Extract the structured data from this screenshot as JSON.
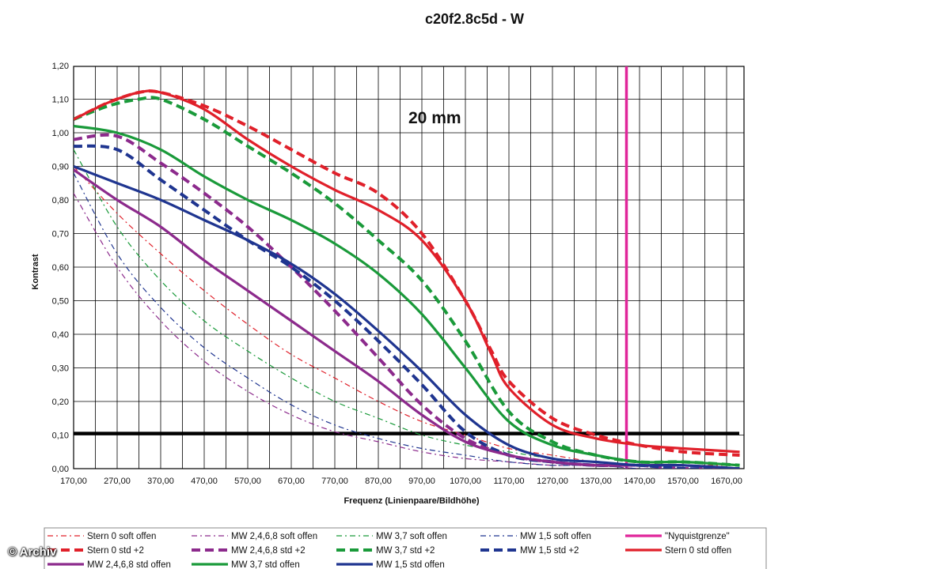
{
  "chart_data": {
    "type": "line",
    "title": "c20f2.8c5d - W",
    "annotation": "20 mm",
    "xlabel": "Frequenz (Linienpaare/Bildhöhe)",
    "ylabel": "Kontrast",
    "xlim": [
      170,
      1700
    ],
    "ylim": [
      0,
      1.2
    ],
    "x_ticks": [
      "170,00",
      "270,00",
      "370,00",
      "470,00",
      "570,00",
      "670,00",
      "770,00",
      "870,00",
      "970,00",
      "1070,00",
      "1170,00",
      "1270,00",
      "1370,00",
      "1470,00",
      "1570,00",
      "1670,00"
    ],
    "y_ticks": [
      "0,00",
      "0,10",
      "0,20",
      "0,30",
      "0,40",
      "0,50",
      "0,60",
      "0,70",
      "0,80",
      "0,90",
      "1,00",
      "1,10",
      "1,20"
    ],
    "grid": true,
    "legend_position": "bottom",
    "reference_lines": [
      {
        "orientation": "horizontal",
        "y": 0.105,
        "color": "#000000"
      },
      {
        "orientation": "vertical",
        "x": 1440,
        "color": "#e0259a"
      }
    ],
    "series": [
      {
        "name": "Stern 0 soft offen",
        "color": "#e0202a",
        "style": "dashdot",
        "points": [
          [
            170,
            0.9
          ],
          [
            270,
            0.76
          ],
          [
            370,
            0.64
          ],
          [
            470,
            0.53
          ],
          [
            570,
            0.43
          ],
          [
            670,
            0.34
          ],
          [
            770,
            0.27
          ],
          [
            870,
            0.2
          ],
          [
            970,
            0.14
          ],
          [
            1070,
            0.1
          ],
          [
            1170,
            0.06
          ],
          [
            1270,
            0.04
          ],
          [
            1370,
            0.02
          ],
          [
            1470,
            0.01
          ],
          [
            1570,
            0.01
          ],
          [
            1700,
            0.01
          ]
        ]
      },
      {
        "name": "MW 2,4,6,8 soft offen",
        "color": "#8c2a8c",
        "style": "dashdot",
        "points": [
          [
            170,
            0.82
          ],
          [
            270,
            0.6
          ],
          [
            370,
            0.44
          ],
          [
            470,
            0.32
          ],
          [
            570,
            0.23
          ],
          [
            670,
            0.16
          ],
          [
            770,
            0.11
          ],
          [
            870,
            0.08
          ],
          [
            970,
            0.05
          ],
          [
            1070,
            0.03
          ],
          [
            1170,
            0.02
          ],
          [
            1270,
            0.01
          ],
          [
            1370,
            0.01
          ],
          [
            1470,
            0.0
          ],
          [
            1570,
            0.0
          ],
          [
            1700,
            0.0
          ]
        ]
      },
      {
        "name": "MW 3,7 soft offen",
        "color": "#1a9a3a",
        "style": "dashdot",
        "points": [
          [
            170,
            0.95
          ],
          [
            270,
            0.72
          ],
          [
            370,
            0.56
          ],
          [
            470,
            0.44
          ],
          [
            570,
            0.35
          ],
          [
            670,
            0.27
          ],
          [
            770,
            0.2
          ],
          [
            870,
            0.15
          ],
          [
            970,
            0.1
          ],
          [
            1070,
            0.07
          ],
          [
            1170,
            0.05
          ],
          [
            1270,
            0.03
          ],
          [
            1370,
            0.02
          ],
          [
            1470,
            0.01
          ],
          [
            1570,
            0.01
          ],
          [
            1700,
            0.0
          ]
        ]
      },
      {
        "name": "MW 1,5 soft offen",
        "color": "#1f3590",
        "style": "dashdot",
        "points": [
          [
            170,
            0.88
          ],
          [
            270,
            0.64
          ],
          [
            370,
            0.48
          ],
          [
            470,
            0.36
          ],
          [
            570,
            0.27
          ],
          [
            670,
            0.19
          ],
          [
            770,
            0.13
          ],
          [
            870,
            0.09
          ],
          [
            970,
            0.06
          ],
          [
            1070,
            0.04
          ],
          [
            1170,
            0.02
          ],
          [
            1270,
            0.01
          ],
          [
            1370,
            0.01
          ],
          [
            1470,
            0.0
          ],
          [
            1570,
            0.0
          ],
          [
            1700,
            0.0
          ]
        ]
      },
      {
        "name": "\"Nyquistgrenze\"",
        "color": "#e0259a",
        "style": "solid",
        "points": []
      },
      {
        "name": "Stern 0 std +2",
        "color": "#e0202a",
        "style": "dashed",
        "points": [
          [
            170,
            1.04
          ],
          [
            250,
            1.09
          ],
          [
            320,
            1.12
          ],
          [
            370,
            1.12
          ],
          [
            470,
            1.08
          ],
          [
            570,
            1.02
          ],
          [
            670,
            0.95
          ],
          [
            770,
            0.88
          ],
          [
            870,
            0.82
          ],
          [
            970,
            0.7
          ],
          [
            1070,
            0.5
          ],
          [
            1130,
            0.35
          ],
          [
            1170,
            0.26
          ],
          [
            1270,
            0.15
          ],
          [
            1370,
            0.1
          ],
          [
            1470,
            0.07
          ],
          [
            1570,
            0.05
          ],
          [
            1700,
            0.04
          ]
        ]
      },
      {
        "name": "MW 2,4,6,8 std +2",
        "color": "#8c2a8c",
        "style": "dashed",
        "points": [
          [
            170,
            0.98
          ],
          [
            270,
            0.99
          ],
          [
            370,
            0.91
          ],
          [
            470,
            0.82
          ],
          [
            570,
            0.72
          ],
          [
            670,
            0.6
          ],
          [
            770,
            0.47
          ],
          [
            870,
            0.33
          ],
          [
            970,
            0.19
          ],
          [
            1070,
            0.09
          ],
          [
            1170,
            0.04
          ],
          [
            1270,
            0.02
          ],
          [
            1370,
            0.01
          ],
          [
            1470,
            0.01
          ],
          [
            1570,
            0.0
          ],
          [
            1700,
            0.0
          ]
        ]
      },
      {
        "name": "MW 3,7 std +2",
        "color": "#1a9a3a",
        "style": "dashed",
        "points": [
          [
            170,
            1.04
          ],
          [
            250,
            1.08
          ],
          [
            320,
            1.1
          ],
          [
            370,
            1.1
          ],
          [
            470,
            1.04
          ],
          [
            570,
            0.96
          ],
          [
            670,
            0.88
          ],
          [
            770,
            0.79
          ],
          [
            870,
            0.68
          ],
          [
            970,
            0.56
          ],
          [
            1070,
            0.38
          ],
          [
            1170,
            0.17
          ],
          [
            1270,
            0.08
          ],
          [
            1370,
            0.04
          ],
          [
            1470,
            0.02
          ],
          [
            1570,
            0.02
          ],
          [
            1700,
            0.01
          ]
        ]
      },
      {
        "name": "MW 1,5 std +2",
        "color": "#1f3590",
        "style": "dashed",
        "points": [
          [
            170,
            0.96
          ],
          [
            270,
            0.95
          ],
          [
            370,
            0.86
          ],
          [
            470,
            0.77
          ],
          [
            570,
            0.68
          ],
          [
            670,
            0.6
          ],
          [
            770,
            0.5
          ],
          [
            870,
            0.38
          ],
          [
            970,
            0.25
          ],
          [
            1070,
            0.11
          ],
          [
            1170,
            0.04
          ],
          [
            1270,
            0.02
          ],
          [
            1370,
            0.01
          ],
          [
            1470,
            0.01
          ],
          [
            1570,
            0.0
          ],
          [
            1700,
            0.0
          ]
        ]
      },
      {
        "name": "Stern 0 std offen",
        "color": "#e0202a",
        "style": "solid",
        "points": [
          [
            170,
            1.04
          ],
          [
            250,
            1.09
          ],
          [
            320,
            1.12
          ],
          [
            370,
            1.12
          ],
          [
            470,
            1.07
          ],
          [
            570,
            0.98
          ],
          [
            670,
            0.9
          ],
          [
            770,
            0.83
          ],
          [
            870,
            0.77
          ],
          [
            970,
            0.68
          ],
          [
            1070,
            0.5
          ],
          [
            1130,
            0.34
          ],
          [
            1170,
            0.24
          ],
          [
            1270,
            0.13
          ],
          [
            1370,
            0.09
          ],
          [
            1470,
            0.07
          ],
          [
            1570,
            0.06
          ],
          [
            1700,
            0.05
          ]
        ]
      },
      {
        "name": "MW 2,4,6,8 std offen",
        "color": "#8c2a8c",
        "style": "solid",
        "points": [
          [
            170,
            0.89
          ],
          [
            270,
            0.8
          ],
          [
            370,
            0.72
          ],
          [
            470,
            0.62
          ],
          [
            570,
            0.53
          ],
          [
            670,
            0.44
          ],
          [
            770,
            0.35
          ],
          [
            870,
            0.26
          ],
          [
            970,
            0.16
          ],
          [
            1070,
            0.08
          ],
          [
            1170,
            0.04
          ],
          [
            1270,
            0.02
          ],
          [
            1370,
            0.01
          ],
          [
            1470,
            0.01
          ],
          [
            1570,
            0.01
          ],
          [
            1700,
            0.0
          ]
        ]
      },
      {
        "name": "MW 3,7 std offen",
        "color": "#1a9a3a",
        "style": "solid",
        "points": [
          [
            170,
            1.02
          ],
          [
            270,
            1.0
          ],
          [
            370,
            0.95
          ],
          [
            470,
            0.87
          ],
          [
            570,
            0.8
          ],
          [
            670,
            0.74
          ],
          [
            770,
            0.67
          ],
          [
            870,
            0.58
          ],
          [
            970,
            0.46
          ],
          [
            1070,
            0.3
          ],
          [
            1170,
            0.14
          ],
          [
            1270,
            0.07
          ],
          [
            1370,
            0.04
          ],
          [
            1470,
            0.02
          ],
          [
            1570,
            0.02
          ],
          [
            1700,
            0.01
          ]
        ]
      },
      {
        "name": "MW 1,5 std offen",
        "color": "#1f3590",
        "style": "solid",
        "points": [
          [
            170,
            0.9
          ],
          [
            270,
            0.85
          ],
          [
            370,
            0.8
          ],
          [
            470,
            0.74
          ],
          [
            570,
            0.68
          ],
          [
            670,
            0.61
          ],
          [
            770,
            0.52
          ],
          [
            870,
            0.41
          ],
          [
            970,
            0.29
          ],
          [
            1070,
            0.16
          ],
          [
            1170,
            0.07
          ],
          [
            1270,
            0.03
          ],
          [
            1370,
            0.02
          ],
          [
            1470,
            0.01
          ],
          [
            1570,
            0.01
          ],
          [
            1700,
            0.0
          ]
        ]
      }
    ]
  },
  "watermark": "© Archiv"
}
